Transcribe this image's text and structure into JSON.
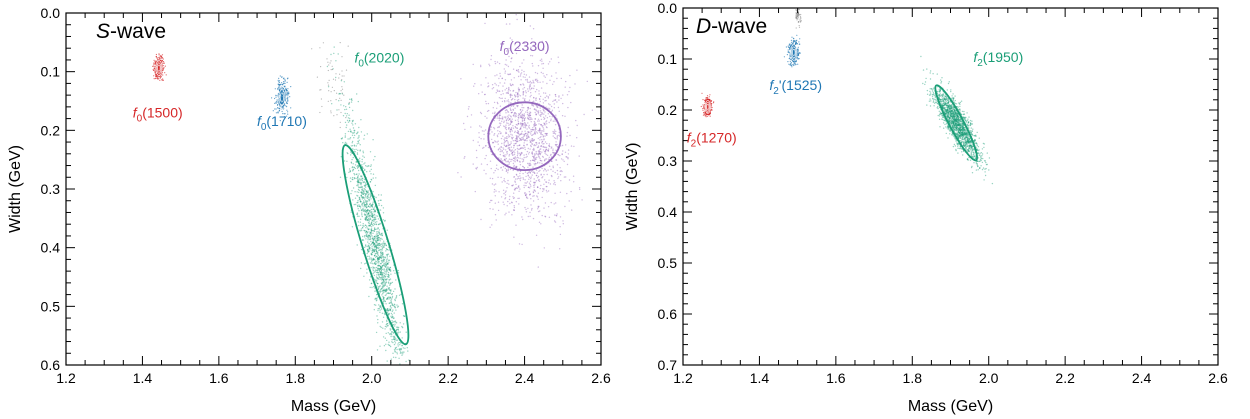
{
  "chart_data": [
    {
      "type": "scatter",
      "panel_label_italic": "S",
      "panel_label_rest": "-wave",
      "xlabel": "Mass (GeV)",
      "ylabel": "Width (GeV)",
      "xlim": [
        1.2,
        2.6
      ],
      "ylim": [
        0.0,
        0.6
      ],
      "y_inverted": true,
      "xticks": [
        "1.2",
        "1.4",
        "1.6",
        "1.8",
        "2.0",
        "2.2",
        "2.4",
        "2.6"
      ],
      "yticks": [
        "0.0",
        "0.1",
        "0.2",
        "0.3",
        "0.4",
        "0.5",
        "0.6"
      ],
      "grid": false,
      "states": [
        {
          "prefix": "f",
          "sub": "0",
          "suffix": "(1500)",
          "color": "#d62728",
          "mass": 1.443,
          "width": 0.094,
          "sigma_mass": 0.006,
          "sigma_width": 0.009,
          "corr": 0.0,
          "kind": "contour",
          "label_mass": 1.44,
          "label_width": 0.178
        },
        {
          "prefix": "f",
          "sub": "0",
          "suffix": "(1710)",
          "color": "#1f77b4",
          "mass": 1.765,
          "width": 0.144,
          "sigma_mass": 0.008,
          "sigma_width": 0.014,
          "corr": 0.0,
          "kind": "contour",
          "label_mass": 1.765,
          "label_width": 0.193
        },
        {
          "prefix": "f",
          "sub": "0",
          "suffix": "(2020)",
          "color": "#1a9e77",
          "mass": 2.01,
          "width": 0.395,
          "sigma_mass": 0.038,
          "sigma_width": 0.11,
          "corr": 0.9,
          "kind": "ellipse",
          "ellipse_a": 0.215,
          "ellipse_b": 0.027,
          "ellipse_angle_deg": -73.0,
          "label_mass": 2.02,
          "label_width": 0.084
        },
        {
          "prefix": "f",
          "sub": "0",
          "suffix": "(2330)",
          "color": "#9467bd",
          "mass": 2.4,
          "width": 0.21,
          "sigma_mass": 0.055,
          "sigma_width": 0.065,
          "corr": 0.1,
          "kind": "ellipse",
          "ellipse_a": 0.075,
          "ellipse_b": 0.07,
          "ellipse_angle_deg": 0.0,
          "label_mass": 2.4,
          "label_width": 0.065
        }
      ],
      "extra_points": [
        {
          "color": "#777777",
          "mass": 1.9,
          "width": 0.12,
          "sigma_mass": 0.02,
          "sigma_width": 0.03,
          "corr": 0.2
        }
      ]
    },
    {
      "type": "scatter",
      "panel_label_italic": "D",
      "panel_label_rest": "-wave",
      "xlabel": "Mass (GeV)",
      "ylabel": "Width (GeV)",
      "xlim": [
        1.2,
        2.6
      ],
      "ylim": [
        0.0,
        0.7
      ],
      "y_inverted": true,
      "xticks": [
        "1.2",
        "1.4",
        "1.6",
        "1.8",
        "2.0",
        "2.2",
        "2.4",
        "2.6"
      ],
      "yticks": [
        "0.0",
        "0.1",
        "0.2",
        "0.3",
        "0.4",
        "0.5",
        "0.6",
        "0.7"
      ],
      "grid": false,
      "states": [
        {
          "prefix": "f",
          "sub": "2",
          "suffix": "(1270)",
          "color": "#d62728",
          "mass": 1.265,
          "width": 0.194,
          "sigma_mass": 0.005,
          "sigma_width": 0.009,
          "corr": 0.0,
          "kind": "contour",
          "label_mass": 1.275,
          "label_width": 0.264
        },
        {
          "prefix": "f",
          "sub": "2",
          "suffix": "'(1525)",
          "color": "#1f77b4",
          "mass": 1.49,
          "width": 0.087,
          "sigma_mass": 0.006,
          "sigma_width": 0.011,
          "corr": 0.0,
          "kind": "contour",
          "label_mass": 1.495,
          "label_width": 0.161
        },
        {
          "prefix": "f",
          "sub": "2",
          "suffix": "(1950)",
          "color": "#1a9e77",
          "mass": 1.915,
          "width": 0.225,
          "sigma_mass": 0.03,
          "sigma_width": 0.036,
          "corr": 0.85,
          "kind": "ellipse",
          "ellipse_a": 0.095,
          "ellipse_b": 0.016,
          "ellipse_angle_deg": -62.0,
          "label_mass": 2.025,
          "label_width": 0.106
        }
      ],
      "extra_points": [
        {
          "color": "#777777",
          "mass": 1.5,
          "width": 0.01,
          "sigma_mass": 0.004,
          "sigma_width": 0.01,
          "corr": 0.3
        }
      ]
    }
  ]
}
